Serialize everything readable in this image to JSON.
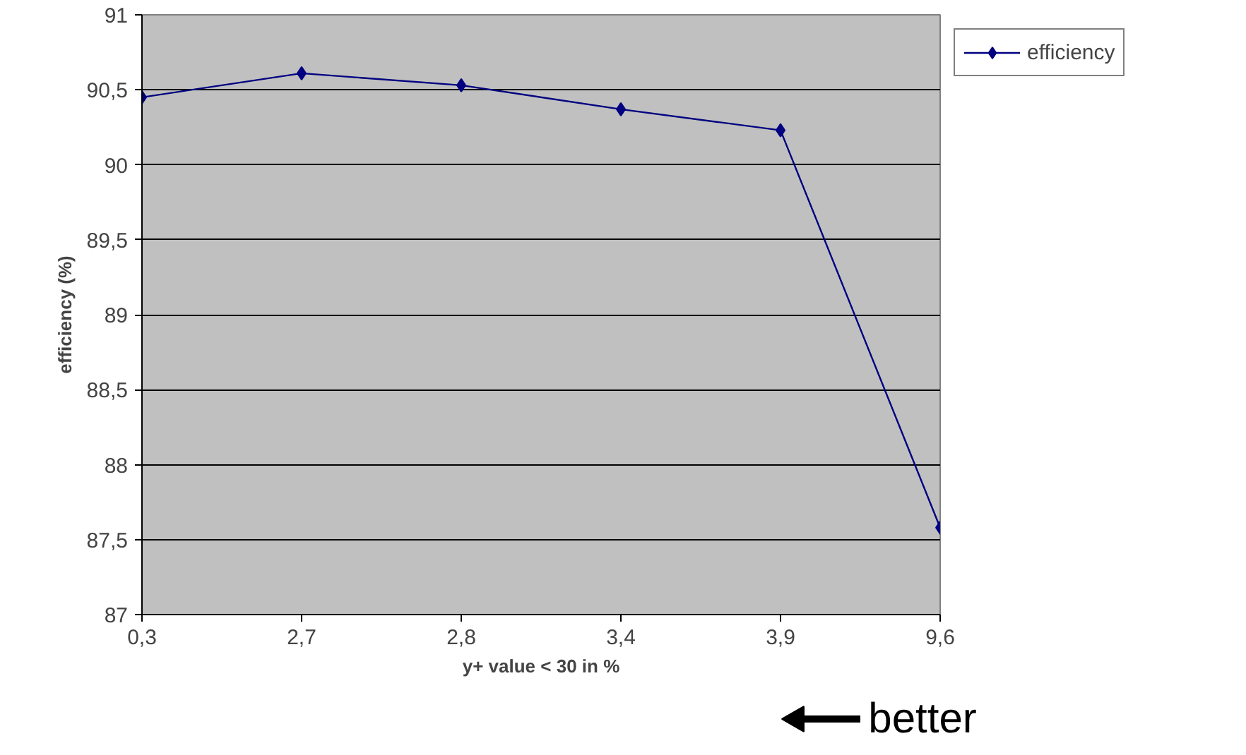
{
  "chart_data": {
    "type": "line",
    "xlabel": "y+ value < 30 in %",
    "ylabel": "efficiency (%)",
    "categories": [
      "0,3",
      "2,7",
      "2,8",
      "3,4",
      "3,9",
      "9,6"
    ],
    "series": [
      {
        "name": "efficiency",
        "color": "#000080",
        "values": [
          90.45,
          90.61,
          90.53,
          90.37,
          90.23,
          87.58
        ]
      }
    ],
    "ylim": [
      87,
      91
    ],
    "yticks": [
      87,
      {
        "value": 87.5,
        "label": "87,5"
      },
      88,
      {
        "value": 88.5,
        "label": "88,5"
      },
      89,
      {
        "value": 89.5,
        "label": "89,5"
      },
      90,
      {
        "value": 90.5,
        "label": "90,5"
      },
      91
    ],
    "grid": "y",
    "legend": "right",
    "marker": "diamond",
    "line_style": "solid",
    "annotations": [
      "better"
    ]
  }
}
